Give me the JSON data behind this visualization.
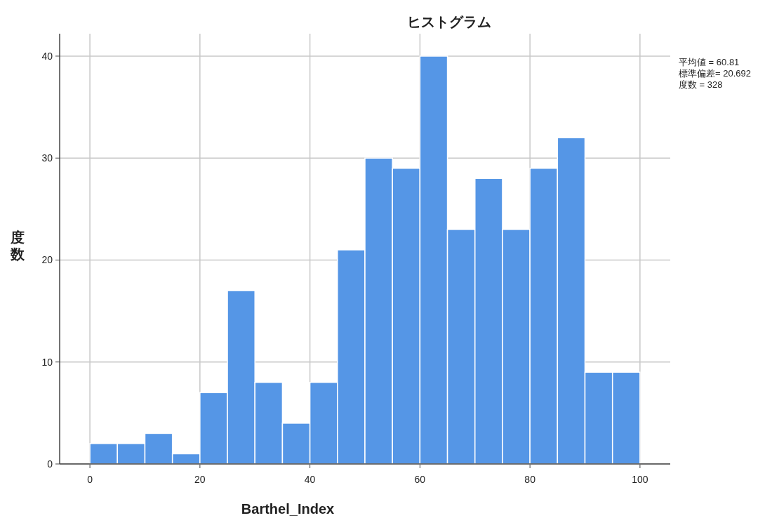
{
  "chart_data": {
    "type": "histogram",
    "title": "ヒストグラム",
    "xlabel": "Barthel_Index",
    "ylabel": "度数",
    "bins": [
      0,
      5,
      10,
      15,
      20,
      25,
      30,
      35,
      40,
      45,
      50,
      55,
      60,
      65,
      70,
      75,
      80,
      85,
      90,
      95,
      100
    ],
    "values": [
      2,
      2,
      3,
      1,
      7,
      17,
      8,
      4,
      8,
      21,
      30,
      29,
      40,
      23,
      28,
      23,
      29,
      32,
      9,
      9
    ],
    "color": "#5596e6",
    "xlim": [
      -5.5,
      105.5
    ],
    "ylim": [
      0,
      42.2
    ],
    "xticks": [
      0,
      20,
      40,
      60,
      80,
      100
    ],
    "yticks": [
      0,
      10,
      20,
      30,
      40
    ],
    "grid": true,
    "annotations": [
      "平均値 = 60.81",
      "標準偏差= 20.692",
      "度数 = 328"
    ]
  }
}
